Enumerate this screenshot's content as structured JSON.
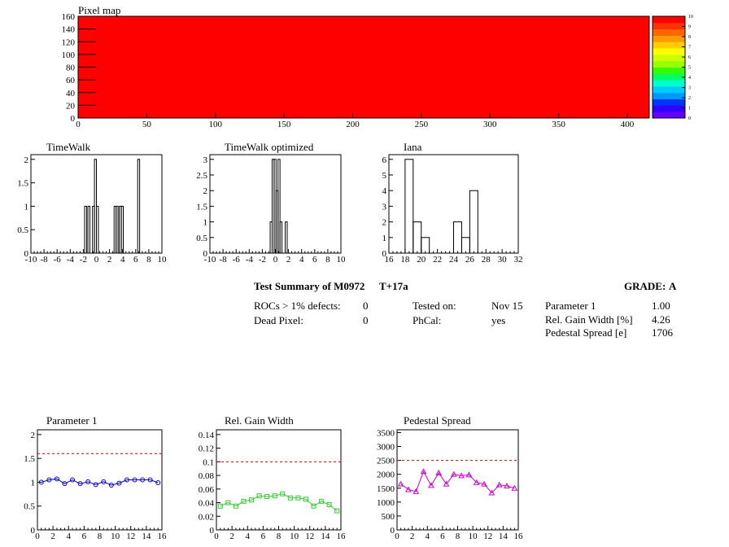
{
  "pixel_map": {
    "title": "Pixel map",
    "fill_color": "#ff0000",
    "xlim": [
      0,
      416
    ],
    "ylim": [
      0,
      160
    ],
    "xticks": [
      0,
      50,
      100,
      150,
      200,
      250,
      300,
      350,
      400
    ],
    "yticks": [
      0,
      20,
      40,
      60,
      80,
      100,
      120,
      140,
      160
    ],
    "palette": [
      "#6600ff",
      "#3300ff",
      "#0033ff",
      "#0099ff",
      "#00ccff",
      "#00ffcc",
      "#00ff66",
      "#33ff00",
      "#99ff00",
      "#ccff00",
      "#ffff00",
      "#ffcc00",
      "#ff9900",
      "#ff6600",
      "#ff3300",
      "#ff0000"
    ],
    "palette_ticks": [
      "0",
      "1",
      "2",
      "3",
      "4",
      "5",
      "6",
      "7",
      "8",
      "9",
      "10"
    ]
  },
  "chart_data": [
    {
      "type": "histogram",
      "title": "TimeWalk",
      "xlim": [
        -10,
        10
      ],
      "ylim": [
        0,
        2.1
      ],
      "xticks": [
        "-10",
        "-8",
        "-6",
        "-4",
        "-2",
        "0",
        "2",
        "4",
        "6",
        "8",
        "10"
      ],
      "yticks": [
        "0",
        "0.5",
        "1",
        "1.5",
        "2"
      ],
      "bins": [
        {
          "x": -1.8,
          "y": 1
        },
        {
          "x": -1.3,
          "y": 1
        },
        {
          "x": -0.6,
          "y": 1
        },
        {
          "x": -0.3,
          "y": 2
        },
        {
          "x": 0.0,
          "y": 1
        },
        {
          "x": 2.7,
          "y": 1
        },
        {
          "x": 3.0,
          "y": 1
        },
        {
          "x": 3.5,
          "y": 1
        },
        {
          "x": 3.8,
          "y": 1
        },
        {
          "x": 6.3,
          "y": 2
        }
      ],
      "bin_width": 0.3
    },
    {
      "type": "histogram",
      "title": "TimeWalk optimized",
      "xlim": [
        -10,
        10
      ],
      "ylim": [
        0,
        3.15
      ],
      "xticks": [
        "-10",
        "-8",
        "-6",
        "-4",
        "-2",
        "0",
        "2",
        "4",
        "6",
        "8",
        "10"
      ],
      "yticks": [
        "0",
        "0.5",
        "1",
        "1.5",
        "2",
        "2.5",
        "3"
      ],
      "bins": [
        {
          "x": -0.8,
          "y": 1
        },
        {
          "x": -0.5,
          "y": 3
        },
        {
          "x": -0.2,
          "y": 3
        },
        {
          "x": 0.1,
          "y": 2
        },
        {
          "x": 0.4,
          "y": 3
        },
        {
          "x": 0.7,
          "y": 1
        },
        {
          "x": 1.5,
          "y": 1
        }
      ],
      "bin_width": 0.3
    },
    {
      "type": "histogram",
      "title": "Iana",
      "xlim": [
        16,
        32
      ],
      "ylim": [
        0,
        6.3
      ],
      "xticks": [
        "16",
        "18",
        "20",
        "22",
        "24",
        "26",
        "28",
        "30",
        "32"
      ],
      "yticks": [
        "0",
        "1",
        "2",
        "3",
        "4",
        "5",
        "6"
      ],
      "bins": [
        {
          "x": 18,
          "y": 6
        },
        {
          "x": 19,
          "y": 2
        },
        {
          "x": 20,
          "y": 1
        },
        {
          "x": 24,
          "y": 2
        },
        {
          "x": 25,
          "y": 1
        },
        {
          "x": 26,
          "y": 4
        }
      ],
      "bin_width": 1
    },
    {
      "type": "line",
      "title": "Parameter 1",
      "color": "#0000cc",
      "marker": "circle",
      "xlim": [
        0,
        16
      ],
      "ylim": [
        0,
        2.1
      ],
      "threshold": 1.6,
      "xticks": [
        "0",
        "2",
        "4",
        "6",
        "8",
        "10",
        "12",
        "14",
        "16"
      ],
      "yticks": [
        "0",
        "0.5",
        "1",
        "1.5",
        "2"
      ],
      "x": [
        0.5,
        1.5,
        2.5,
        3.5,
        4.5,
        5.5,
        6.5,
        7.5,
        8.5,
        9.5,
        10.5,
        11.5,
        12.5,
        13.5,
        14.5,
        15.5
      ],
      "y": [
        1.0,
        1.05,
        1.07,
        0.97,
        1.05,
        0.97,
        1.01,
        0.95,
        1.01,
        0.94,
        0.98,
        1.05,
        1.05,
        1.05,
        1.05,
        0.99
      ]
    },
    {
      "type": "line",
      "title": "Rel. Gain Width",
      "color": "#33cc33",
      "marker": "square",
      "xlim": [
        0,
        16
      ],
      "ylim": [
        0,
        0.147
      ],
      "threshold": 0.1,
      "xticks": [
        "0",
        "2",
        "4",
        "6",
        "8",
        "10",
        "12",
        "14",
        "16"
      ],
      "yticks": [
        "0",
        "0.02",
        "0.04",
        "0.06",
        "0.08",
        "0.1",
        "0.12",
        "0.14"
      ],
      "x": [
        0.5,
        1.5,
        2.5,
        3.5,
        4.5,
        5.5,
        6.5,
        7.5,
        8.5,
        9.5,
        10.5,
        11.5,
        12.5,
        13.5,
        14.5,
        15.5
      ],
      "y": [
        0.035,
        0.04,
        0.035,
        0.042,
        0.044,
        0.05,
        0.049,
        0.05,
        0.053,
        0.047,
        0.047,
        0.045,
        0.035,
        0.042,
        0.037,
        0.028
      ]
    },
    {
      "type": "line",
      "title": "Pedestal Spread",
      "color": "#cc00cc",
      "marker": "triangle",
      "xlim": [
        0,
        16
      ],
      "ylim": [
        0,
        3600
      ],
      "threshold": 2500,
      "xticks": [
        "0",
        "2",
        "4",
        "6",
        "8",
        "10",
        "12",
        "14",
        "16"
      ],
      "yticks": [
        "0",
        "500",
        "1000",
        "1500",
        "2000",
        "2500",
        "3000",
        "3500"
      ],
      "x": [
        0.5,
        1.5,
        2.5,
        3.5,
        4.5,
        5.5,
        6.5,
        7.5,
        8.5,
        9.5,
        10.5,
        11.5,
        12.5,
        13.5,
        14.5,
        15.5
      ],
      "y": [
        1650,
        1450,
        1380,
        2100,
        1600,
        2050,
        1650,
        2000,
        1950,
        1980,
        1700,
        1650,
        1330,
        1620,
        1580,
        1500
      ]
    }
  ],
  "summary": {
    "title": "Test Summary of M0972",
    "temp": "T+17a",
    "grade_label": "GRADE:",
    "grade_value": "A",
    "rocs_label": "ROCs > 1% defects:",
    "rocs_value": "0",
    "dead_label": "Dead Pixel:",
    "dead_value": "0",
    "tested_label": "Tested on:",
    "tested_value": "Nov 15",
    "phcal_label": "PhCal:",
    "phcal_value": "yes",
    "param1_label": "Parameter 1",
    "param1_value": "1.00",
    "gain_label": "Rel. Gain Width [%]",
    "gain_value": "4.26",
    "ped_label": "Pedestal Spread [e]",
    "ped_value": "1706"
  }
}
